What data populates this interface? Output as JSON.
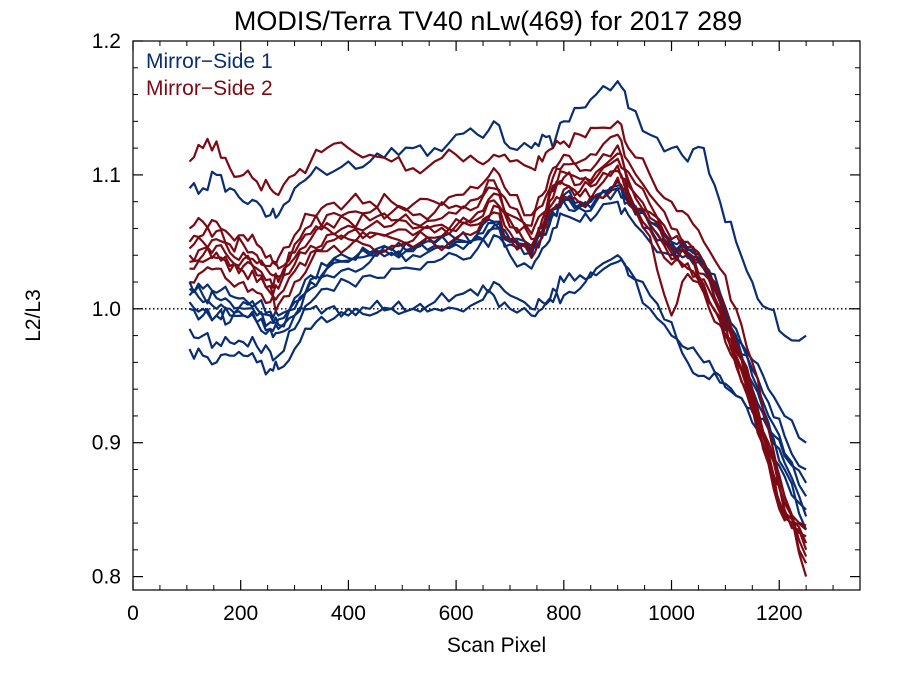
{
  "chart_data": {
    "type": "line",
    "title": "MODIS/Terra TV40 nLw(469) for 2017 289",
    "xlabel": "Scan Pixel",
    "ylabel": "L2/L3",
    "xlim": [
      0,
      1350
    ],
    "ylim": [
      0.79,
      1.2
    ],
    "xticks": [
      0,
      200,
      400,
      600,
      800,
      1000,
      1200
    ],
    "xtick_labels": [
      "0",
      "200",
      "400",
      "600",
      "800",
      "1000",
      "1200"
    ],
    "yticks": [
      0.8,
      0.9,
      1.0,
      1.1,
      1.2
    ],
    "ytick_labels": [
      "0.8",
      "0.9",
      "1.0",
      "1.1",
      "1.2"
    ],
    "reference_line": {
      "y": 1.0,
      "style": "dotted"
    },
    "legend": {
      "placement": "top-left",
      "entries": [
        {
          "label": "Mirror−Side 1",
          "color": "#0a2e73"
        },
        {
          "label": "Mirror−Side 2",
          "color": "#7a0a14"
        }
      ]
    },
    "x": [
      105,
      130,
      155,
      180,
      205,
      230,
      255,
      270,
      300,
      330,
      360,
      400,
      440,
      480,
      520,
      560,
      600,
      640,
      670,
      700,
      740,
      760,
      780,
      800,
      830,
      860,
      900,
      920,
      960,
      1000,
      1030,
      1060,
      1090,
      1120,
      1150,
      1180,
      1210,
      1250
    ],
    "series": [
      {
        "group": 1,
        "color": "#0a2e73",
        "values": [
          1.09,
          1.09,
          1.1,
          1.09,
          1.08,
          1.08,
          1.07,
          1.07,
          1.09,
          1.1,
          1.1,
          1.11,
          1.11,
          1.12,
          1.12,
          1.12,
          1.13,
          1.13,
          1.14,
          1.12,
          1.12,
          1.13,
          1.12,
          1.14,
          1.15,
          1.16,
          1.17,
          1.15,
          1.13,
          1.12,
          1.11,
          1.12,
          1.08,
          1.05,
          1.02,
          1.0,
          0.98,
          0.98
        ]
      },
      {
        "group": 1,
        "color": "#0a2e73",
        "values": [
          1.0,
          0.995,
          0.995,
          0.99,
          0.995,
          0.99,
          0.985,
          0.985,
          0.995,
          1.0,
          1.0,
          1.0,
          1.0,
          1.0,
          1.0,
          1.005,
          1.01,
          1.01,
          1.02,
          1.01,
          1.0,
          1.005,
          1.015,
          1.02,
          1.025,
          1.03,
          1.04,
          1.03,
          1.01,
          0.99,
          0.97,
          0.96,
          0.95,
          0.935,
          0.925,
          0.91,
          0.89,
          0.87
        ]
      },
      {
        "group": 1,
        "color": "#0a2e73",
        "values": [
          0.97,
          0.965,
          0.96,
          0.965,
          0.965,
          0.96,
          0.955,
          0.955,
          0.97,
          0.985,
          0.99,
          0.995,
          0.995,
          1.0,
          1.0,
          1.0,
          1.0,
          1.005,
          1.01,
          1.0,
          0.995,
          1.0,
          1.005,
          1.01,
          1.015,
          1.025,
          1.035,
          1.025,
          1.0,
          0.98,
          0.96,
          0.95,
          0.945,
          0.935,
          0.915,
          0.895,
          0.875,
          0.85
        ]
      },
      {
        "group": 1,
        "color": "#0a2e73",
        "values": [
          0.985,
          0.98,
          0.975,
          0.975,
          0.975,
          0.972,
          0.968,
          0.965,
          0.985,
          1.005,
          1.015,
          1.02,
          1.025,
          1.03,
          1.03,
          1.035,
          1.04,
          1.045,
          1.055,
          1.04,
          1.03,
          1.045,
          1.06,
          1.07,
          1.065,
          1.07,
          1.08,
          1.07,
          1.05,
          1.04,
          1.04,
          1.03,
          1.0,
          0.97,
          0.94,
          0.91,
          0.88,
          0.835
        ]
      },
      {
        "group": 1,
        "color": "#0a2e73",
        "values": [
          1.005,
          1.0,
          0.995,
          0.995,
          0.995,
          0.99,
          0.985,
          0.982,
          0.995,
          1.015,
          1.025,
          1.03,
          1.035,
          1.04,
          1.04,
          1.045,
          1.048,
          1.052,
          1.06,
          1.048,
          1.04,
          1.055,
          1.07,
          1.08,
          1.075,
          1.08,
          1.09,
          1.08,
          1.06,
          1.045,
          1.04,
          1.03,
          1.005,
          0.975,
          0.945,
          0.915,
          0.885,
          0.845
        ]
      },
      {
        "group": 1,
        "color": "#0a2e73",
        "values": [
          1.01,
          1.005,
          1.0,
          1.0,
          1.0,
          0.995,
          0.99,
          0.988,
          1.0,
          1.02,
          1.03,
          1.035,
          1.04,
          1.045,
          1.045,
          1.05,
          1.052,
          1.056,
          1.065,
          1.052,
          1.045,
          1.06,
          1.075,
          1.085,
          1.08,
          1.085,
          1.095,
          1.085,
          1.065,
          1.05,
          1.045,
          1.035,
          1.01,
          0.98,
          0.95,
          0.92,
          0.892,
          0.86
        ]
      },
      {
        "group": 1,
        "color": "#0a2e73",
        "values": [
          1.015,
          1.01,
          1.008,
          1.005,
          1.005,
          1.0,
          0.995,
          0.992,
          1.005,
          1.022,
          1.03,
          1.036,
          1.04,
          1.042,
          1.043,
          1.047,
          1.05,
          1.054,
          1.062,
          1.05,
          1.042,
          1.056,
          1.072,
          1.08,
          1.076,
          1.082,
          1.09,
          1.08,
          1.062,
          1.048,
          1.042,
          1.033,
          1.008,
          0.978,
          0.955,
          0.93,
          0.905,
          0.88
        ]
      },
      {
        "group": 1,
        "color": "#0a2e73",
        "values": [
          1.02,
          1.015,
          1.012,
          1.01,
          1.008,
          1.004,
          0.998,
          0.995,
          1.008,
          1.025,
          1.032,
          1.038,
          1.042,
          1.044,
          1.045,
          1.049,
          1.052,
          1.056,
          1.064,
          1.052,
          1.044,
          1.058,
          1.074,
          1.082,
          1.078,
          1.084,
          1.092,
          1.082,
          1.064,
          1.05,
          1.044,
          1.035,
          1.012,
          0.985,
          0.962,
          0.94,
          0.92,
          0.9
        ]
      },
      {
        "group": 2,
        "color": "#7a0a14",
        "values": [
          1.11,
          1.12,
          1.125,
          1.105,
          1.1,
          1.095,
          1.09,
          1.085,
          1.1,
          1.11,
          1.12,
          1.12,
          1.115,
          1.11,
          1.105,
          1.11,
          1.115,
          1.11,
          1.115,
          1.11,
          1.105,
          1.11,
          1.12,
          1.125,
          1.13,
          1.135,
          1.14,
          1.12,
          1.1,
          1.08,
          1.07,
          1.05,
          1.03,
          1.0,
          0.96,
          0.91,
          0.86,
          0.8
        ]
      },
      {
        "group": 2,
        "color": "#7a0a14",
        "values": [
          1.06,
          1.065,
          1.065,
          1.055,
          1.055,
          1.048,
          1.04,
          1.038,
          1.055,
          1.07,
          1.078,
          1.08,
          1.08,
          1.08,
          1.078,
          1.08,
          1.085,
          1.09,
          1.105,
          1.085,
          1.07,
          1.085,
          1.105,
          1.115,
          1.11,
          1.115,
          1.13,
          1.11,
          1.085,
          1.06,
          1.05,
          1.035,
          1.01,
          0.975,
          0.94,
          0.9,
          0.86,
          0.815
        ]
      },
      {
        "group": 2,
        "color": "#7a0a14",
        "values": [
          1.05,
          1.055,
          1.058,
          1.048,
          1.048,
          1.04,
          1.032,
          1.03,
          1.048,
          1.062,
          1.07,
          1.072,
          1.072,
          1.072,
          1.07,
          1.072,
          1.077,
          1.082,
          1.096,
          1.076,
          1.062,
          1.077,
          1.098,
          1.108,
          1.103,
          1.108,
          1.122,
          1.102,
          1.078,
          1.052,
          1.046,
          1.03,
          1.005,
          0.972,
          0.935,
          0.895,
          0.855,
          0.81
        ]
      },
      {
        "group": 2,
        "color": "#7a0a14",
        "values": [
          1.045,
          1.05,
          1.052,
          1.042,
          1.042,
          1.034,
          1.026,
          1.024,
          1.042,
          1.056,
          1.064,
          1.066,
          1.066,
          1.066,
          1.064,
          1.066,
          1.071,
          1.076,
          1.09,
          1.07,
          1.056,
          1.071,
          1.092,
          1.102,
          1.097,
          1.102,
          1.116,
          1.096,
          1.072,
          1.046,
          1.042,
          1.026,
          1.0,
          0.968,
          0.932,
          0.892,
          0.85,
          0.82
        ]
      },
      {
        "group": 2,
        "color": "#7a0a14",
        "values": [
          1.04,
          1.045,
          1.047,
          1.037,
          1.037,
          1.03,
          1.022,
          1.02,
          1.038,
          1.052,
          1.06,
          1.062,
          1.062,
          1.062,
          1.06,
          1.062,
          1.067,
          1.072,
          1.086,
          1.066,
          1.052,
          1.067,
          1.088,
          1.098,
          1.093,
          1.098,
          1.112,
          1.092,
          1.068,
          1.042,
          1.038,
          1.022,
          0.997,
          0.965,
          0.93,
          0.89,
          0.848,
          0.825
        ]
      },
      {
        "group": 2,
        "color": "#7a0a14",
        "values": [
          1.035,
          1.04,
          1.042,
          1.032,
          1.032,
          1.025,
          1.017,
          1.015,
          1.033,
          1.047,
          1.055,
          1.057,
          1.057,
          1.057,
          1.055,
          1.057,
          1.062,
          1.067,
          1.081,
          1.061,
          1.047,
          1.062,
          1.083,
          1.093,
          1.088,
          1.093,
          1.107,
          1.087,
          1.063,
          1.037,
          1.034,
          1.018,
          0.994,
          0.962,
          0.928,
          0.888,
          0.846,
          0.83
        ]
      },
      {
        "group": 2,
        "color": "#7a0a14",
        "values": [
          1.03,
          1.035,
          1.038,
          1.028,
          1.028,
          1.02,
          1.012,
          1.01,
          1.028,
          1.042,
          1.05,
          1.052,
          1.053,
          1.053,
          1.051,
          1.053,
          1.058,
          1.063,
          1.077,
          1.057,
          1.043,
          1.058,
          1.079,
          1.089,
          1.084,
          1.089,
          1.103,
          1.083,
          1.059,
          1.033,
          1.03,
          1.015,
          0.991,
          0.96,
          0.926,
          0.886,
          0.844,
          0.835
        ]
      },
      {
        "group": 2,
        "color": "#7a0a14",
        "values": [
          1.02,
          1.028,
          1.03,
          1.02,
          1.02,
          1.012,
          1.005,
          1.003,
          1.02,
          1.035,
          1.043,
          1.046,
          1.047,
          1.047,
          1.046,
          1.048,
          1.053,
          1.058,
          1.072,
          1.052,
          1.038,
          1.053,
          1.074,
          1.084,
          1.079,
          1.084,
          1.098,
          1.078,
          1.054,
          0.995,
          1.026,
          1.012,
          0.988,
          0.957,
          0.923,
          0.884,
          0.842,
          0.838
        ]
      }
    ]
  }
}
